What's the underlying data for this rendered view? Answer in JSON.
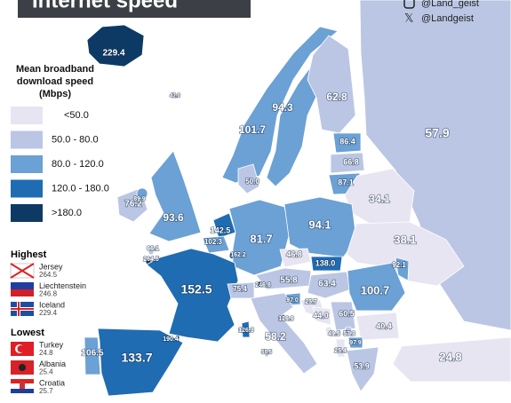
{
  "header": {
    "title": "Internet speed",
    "instagram": "@Land_geist",
    "x": "@Landgeist"
  },
  "legend": {
    "title": [
      "Mean broadband",
      "download speed",
      "(Mbps)"
    ],
    "items": [
      {
        "label": "<50.0",
        "color": "#e7e5f2"
      },
      {
        "label": "50.0  -  80.0",
        "color": "#bac6e3"
      },
      {
        "label": "80.0  - 120.0",
        "color": "#6ba1d4"
      },
      {
        "label": "120.0 - 180.0",
        "color": "#1f6cb2"
      },
      {
        "label": ">180.0",
        "color": "#0d3a64"
      }
    ]
  },
  "highest": {
    "title": "Highest",
    "items": [
      {
        "name": "Jersey",
        "value": "264.5"
      },
      {
        "name": "Liechtenstein",
        "value": "246.8"
      },
      {
        "name": "Iceland",
        "value": "229.4"
      }
    ]
  },
  "lowest": {
    "title": "Lowest",
    "items": [
      {
        "name": "Turkey",
        "value": "24.8"
      },
      {
        "name": "Albania",
        "value": "25.4"
      },
      {
        "name": "Croatia",
        "value": "25.7"
      }
    ]
  },
  "countries": [
    {
      "value": "229.4",
      "color": "#0d3a64"
    },
    {
      "value": "42.0",
      "color": "#e7e5f2"
    },
    {
      "value": "101.7",
      "color": "#6ba1d4"
    },
    {
      "value": "94.3",
      "color": "#6ba1d4"
    },
    {
      "value": "62.8",
      "color": "#bac6e3"
    },
    {
      "value": "57.9",
      "color": "#bac6e3"
    },
    {
      "value": "86.4",
      "color": "#6ba1d4"
    },
    {
      "value": "66.8",
      "color": "#bac6e3"
    },
    {
      "value": "87.1",
      "color": "#6ba1d4"
    },
    {
      "value": "34.1",
      "color": "#e7e5f2"
    },
    {
      "value": "76.2",
      "color": "#bac6e3"
    },
    {
      "value": "89.9",
      "color": "#6ba1d4"
    },
    {
      "value": "93.6",
      "color": "#6ba1d4"
    },
    {
      "value": "50.0",
      "color": "#bac6e3"
    },
    {
      "value": "142.5",
      "color": "#1f6cb2"
    },
    {
      "value": "102.3",
      "color": "#6ba1d4"
    },
    {
      "value": "162.2",
      "color": "#1f6cb2"
    },
    {
      "value": "81.7",
      "color": "#6ba1d4"
    },
    {
      "value": "94.1",
      "color": "#6ba1d4"
    },
    {
      "value": "38.1",
      "color": "#e7e5f2"
    },
    {
      "value": "66.1",
      "color": "#bac6e3"
    },
    {
      "value": "264.5",
      "color": "#0d3a64"
    },
    {
      "value": "152.5",
      "color": "#1f6cb2"
    },
    {
      "value": "46.8",
      "color": "#e7e5f2"
    },
    {
      "value": "138.0",
      "color": "#1f6cb2"
    },
    {
      "value": "92.1",
      "color": "#6ba1d4"
    },
    {
      "value": "246.8",
      "color": "#0d3a64"
    },
    {
      "value": "75.4",
      "color": "#bac6e3"
    },
    {
      "value": "55.8",
      "color": "#bac6e3"
    },
    {
      "value": "63.4",
      "color": "#bac6e3"
    },
    {
      "value": "100.7",
      "color": "#6ba1d4"
    },
    {
      "value": "97.0",
      "color": "#6ba1d4"
    },
    {
      "value": "25.7",
      "color": "#e7e5f2"
    },
    {
      "value": "126.9",
      "color": "#1f6cb2"
    },
    {
      "value": "44.0",
      "color": "#e7e5f2"
    },
    {
      "value": "60.5",
      "color": "#bac6e3"
    },
    {
      "value": "40.4",
      "color": "#e7e5f2"
    },
    {
      "value": "190.4",
      "color": "#0d3a64"
    },
    {
      "value": "126.3",
      "color": "#1f6cb2"
    },
    {
      "value": "58.2",
      "color": "#bac6e3"
    },
    {
      "value": "55.5",
      "color": "#bac6e3"
    },
    {
      "value": "49.5",
      "color": "#e7e5f2"
    },
    {
      "value": "57.3",
      "color": "#bac6e3"
    },
    {
      "value": "97.9",
      "color": "#6ba1d4"
    },
    {
      "value": "25.4",
      "color": "#e7e5f2"
    },
    {
      "value": "106.5",
      "color": "#6ba1d4"
    },
    {
      "value": "133.7",
      "color": "#1f6cb2"
    },
    {
      "value": "53.9",
      "color": "#bac6e3"
    },
    {
      "value": "24.8",
      "color": "#e7e5f2"
    }
  ]
}
